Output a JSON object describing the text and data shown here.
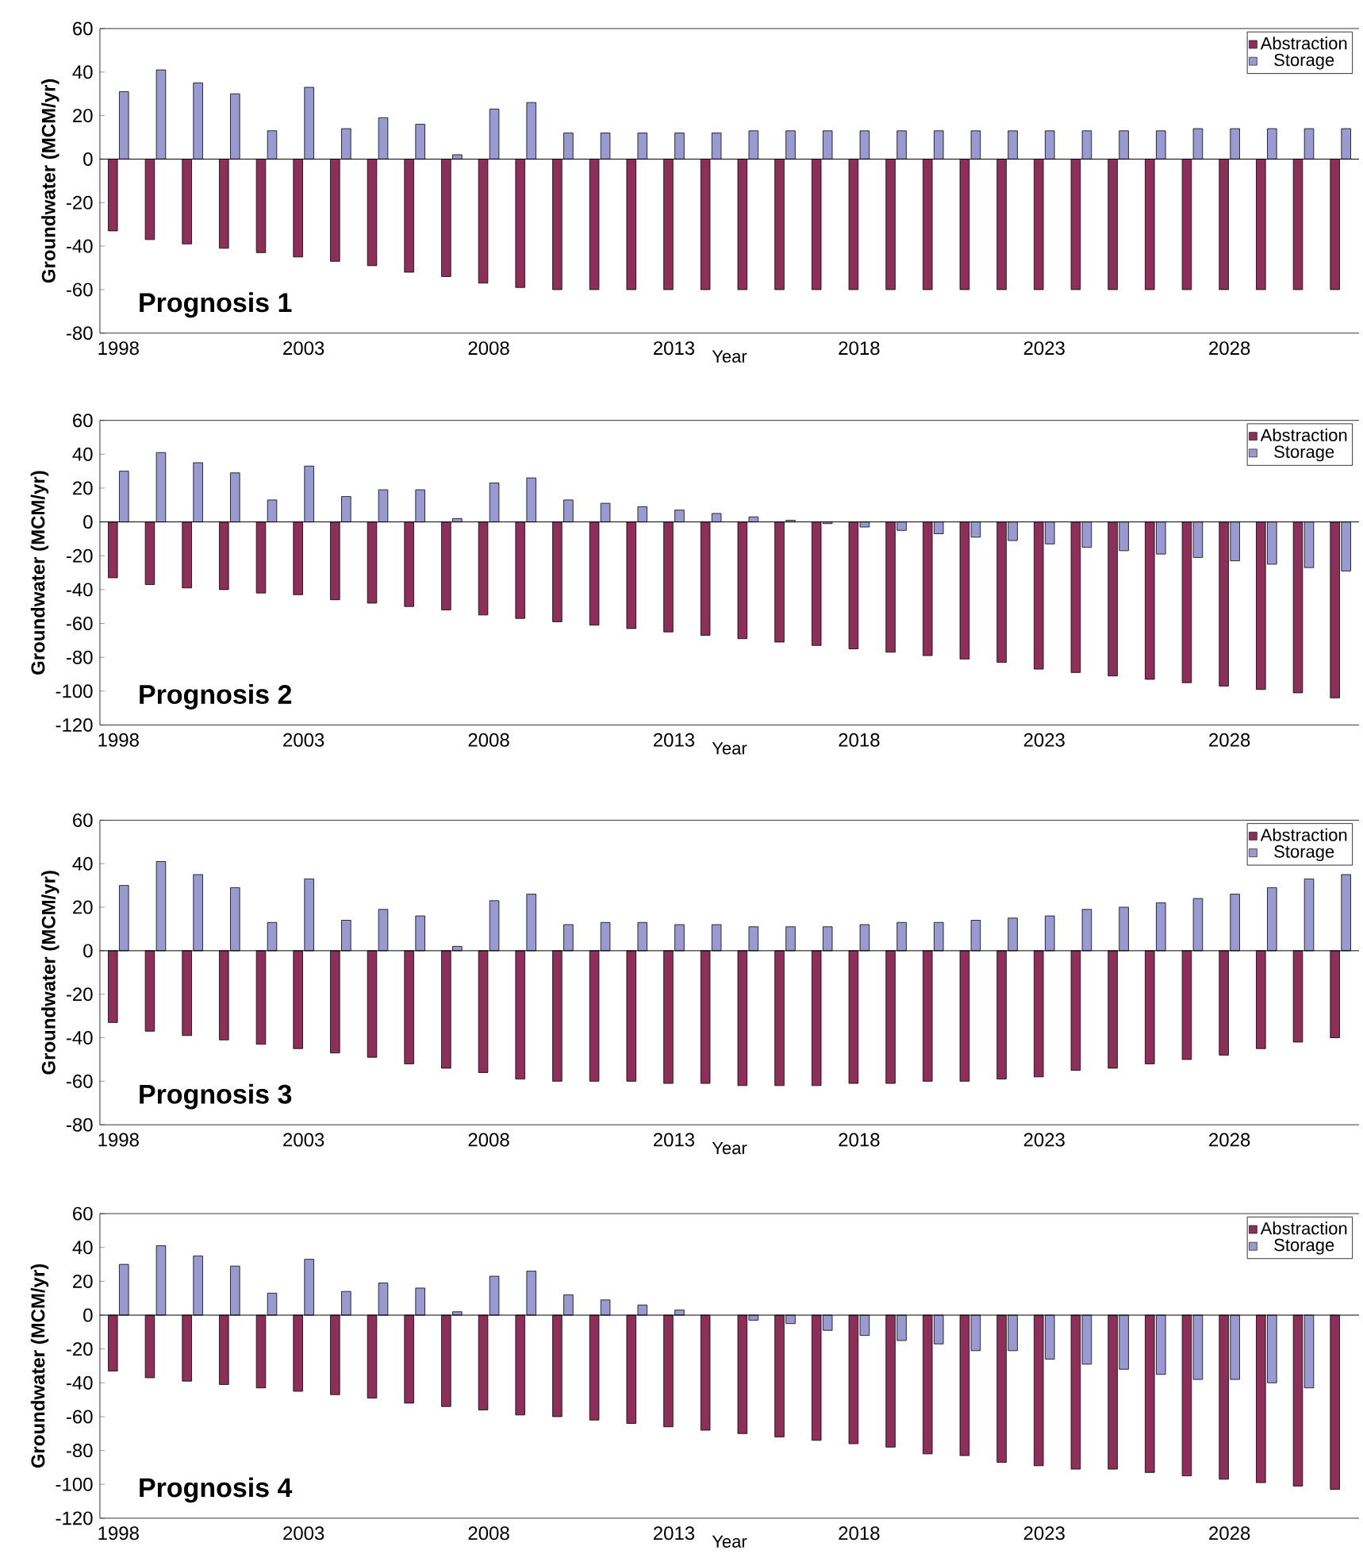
{
  "chart_data": [
    {
      "type": "bar",
      "title": "**Prognosis 1**",
      "xlabel": "Year",
      "ylabel": "Groundwater (MCM/yr)",
      "categories": [
        "1998",
        null,
        null,
        null,
        null,
        "2003",
        null,
        null,
        null,
        null,
        "2008",
        null,
        null,
        null,
        null,
        "2013",
        null,
        null,
        null,
        null,
        "2018",
        null,
        null,
        null,
        null,
        "2023",
        null,
        null,
        null,
        null,
        "2028",
        null,
        null,
        null
      ],
      "series": [
        {
          "name": "Abstraction",
          "color": "#8e2f5a",
          "values": [
            -33,
            -37,
            -39,
            -41,
            -43,
            -45,
            -47,
            -49,
            -52,
            -54,
            -57,
            -59,
            -60,
            -60,
            -60,
            -60,
            -60,
            -60,
            -60,
            -60,
            -60,
            -60,
            -60,
            -60,
            -60,
            -60,
            -60,
            -60,
            -60,
            -60,
            -60,
            -60,
            -60,
            -60
          ]
        },
        {
          "name": "Storage",
          "color": "#9a9ad2",
          "values": [
            31,
            41,
            35,
            30,
            13,
            33,
            14,
            19,
            16,
            2,
            23,
            26,
            12,
            12,
            12,
            12,
            12,
            13,
            13,
            13,
            13,
            13,
            13,
            13,
            13,
            13,
            13,
            13,
            13,
            14,
            14,
            14,
            14,
            14
          ]
        }
      ],
      "ylim": [
        -80,
        60
      ],
      "yticks": [
        -80,
        -60,
        -40,
        -20,
        0,
        20,
        40,
        60
      ],
      "legend": "top right"
    },
    {
      "type": "bar",
      "title": "**Prognosis 2**",
      "xlabel": "Year",
      "ylabel": "Groundwater (MCM/yr)",
      "categories": [
        "1998",
        null,
        null,
        null,
        null,
        "2003",
        null,
        null,
        null,
        null,
        "2008",
        null,
        null,
        null,
        null,
        "2013",
        null,
        null,
        null,
        null,
        "2018",
        null,
        null,
        null,
        null,
        "2023",
        null,
        null,
        null,
        null,
        "2028",
        null,
        null,
        null
      ],
      "series": [
        {
          "name": "Abstraction",
          "color": "#8e2f5a",
          "values": [
            -33,
            -37,
            -39,
            -40,
            -42,
            -43,
            -46,
            -48,
            -50,
            -52,
            -55,
            -57,
            -59,
            -61,
            -63,
            -65,
            -67,
            -69,
            -71,
            -73,
            -75,
            -77,
            -79,
            -81,
            -83,
            -87,
            -89,
            -91,
            -93,
            -95,
            -97,
            -99,
            -101,
            -104
          ]
        },
        {
          "name": "Storage",
          "color": "#9a9ad2",
          "values": [
            30,
            41,
            35,
            29,
            13,
            33,
            15,
            19,
            19,
            2,
            23,
            26,
            13,
            11,
            9,
            7,
            5,
            3,
            1,
            -1,
            -3,
            -5,
            -7,
            -9,
            -11,
            -13,
            -15,
            -17,
            -19,
            -21,
            -23,
            -25,
            -27,
            -29
          ]
        }
      ],
      "ylim": [
        -120,
        60
      ],
      "yticks": [
        -120,
        -100,
        -80,
        -60,
        -40,
        -20,
        0,
        20,
        40,
        60
      ],
      "legend": "top right"
    },
    {
      "type": "bar",
      "title": "**Prognosis 3**",
      "xlabel": "Year",
      "ylabel": "Groundwater (MCM/yr)",
      "categories": [
        "1998",
        null,
        null,
        null,
        null,
        "2003",
        null,
        null,
        null,
        null,
        "2008",
        null,
        null,
        null,
        null,
        "2013",
        null,
        null,
        null,
        null,
        "2018",
        null,
        null,
        null,
        null,
        "2023",
        null,
        null,
        null,
        null,
        "2028",
        null,
        null,
        null
      ],
      "series": [
        {
          "name": "Abstraction",
          "color": "#8e2f5a",
          "values": [
            -33,
            -37,
            -39,
            -41,
            -43,
            -45,
            -47,
            -49,
            -52,
            -54,
            -56,
            -59,
            -60,
            -60,
            -60,
            -61,
            -61,
            -62,
            -62,
            -62,
            -61,
            -61,
            -60,
            -60,
            -59,
            -58,
            -55,
            -54,
            -52,
            -50,
            -48,
            -45,
            -42,
            -40
          ]
        },
        {
          "name": "Storage",
          "color": "#9a9ad2",
          "values": [
            30,
            41,
            35,
            29,
            13,
            33,
            14,
            19,
            16,
            2,
            23,
            26,
            12,
            13,
            13,
            12,
            12,
            11,
            11,
            11,
            12,
            13,
            13,
            14,
            15,
            16,
            19,
            20,
            22,
            24,
            26,
            29,
            33,
            35
          ]
        }
      ],
      "ylim": [
        -80,
        60
      ],
      "yticks": [
        -80,
        -60,
        -40,
        -20,
        0,
        20,
        40,
        60
      ],
      "legend": "top right"
    },
    {
      "type": "bar",
      "title": "**Prognosis 4**",
      "xlabel": "Year",
      "ylabel": "Groundwater (MCM/yr)",
      "categories": [
        "1998",
        null,
        null,
        null,
        null,
        "2003",
        null,
        null,
        null,
        null,
        "2008",
        null,
        null,
        null,
        null,
        "2013",
        null,
        null,
        null,
        null,
        "2018",
        null,
        null,
        null,
        null,
        "2023",
        null,
        null,
        null,
        null,
        "2028",
        null,
        null,
        null
      ],
      "series": [
        {
          "name": "Abstraction",
          "color": "#8e2f5a",
          "values": [
            -33,
            -37,
            -39,
            -41,
            -43,
            -45,
            -47,
            -49,
            -52,
            -54,
            -56,
            -59,
            -60,
            -62,
            -64,
            -66,
            -68,
            -70,
            -72,
            -74,
            -76,
            -78,
            -82,
            -83,
            -87,
            -89,
            -91,
            -91,
            -93,
            -95,
            -97,
            -99,
            -101,
            -103
          ]
        },
        {
          "name": "Storage",
          "color": "#9a9ad2",
          "values": [
            30,
            41,
            35,
            29,
            13,
            33,
            14,
            19,
            16,
            2,
            23,
            26,
            12,
            9,
            6,
            3,
            null,
            -3,
            -5,
            -9,
            -12,
            -15,
            -17,
            -21,
            -21,
            -26,
            -29,
            -32,
            -35,
            -38,
            -38,
            -40,
            -43,
            null
          ]
        }
      ],
      "ylim": [
        -120,
        60
      ],
      "yticks": [
        -120,
        -100,
        -80,
        -60,
        -40,
        -20,
        0,
        20,
        40,
        60
      ],
      "legend": "top right"
    }
  ]
}
